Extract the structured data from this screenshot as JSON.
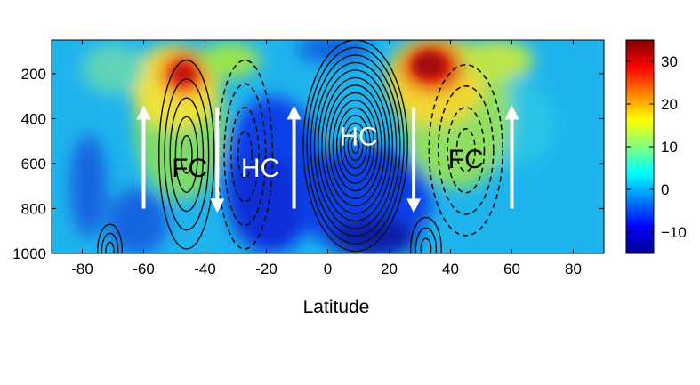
{
  "chart_data": {
    "type": "heatmap",
    "title": "",
    "xlabel": "Latitude",
    "ylabel": "",
    "xlim": [
      -90,
      90
    ],
    "ylim": [
      1000,
      50
    ],
    "x_ticks": [
      -80,
      -60,
      -40,
      -20,
      0,
      20,
      40,
      60,
      80
    ],
    "x_tick_labels": [
      "-80",
      "-60",
      "-40",
      "-20",
      "0",
      "20",
      "40",
      "60",
      "80"
    ],
    "y_ticks": [
      200,
      400,
      600,
      800,
      1000
    ],
    "y_tick_labels": [
      "200",
      "400",
      "600",
      "800",
      "1000"
    ],
    "colorbar": {
      "range": [
        -15,
        35
      ],
      "ticks": [
        -10,
        0,
        10,
        20,
        30
      ],
      "tick_labels": [
        "−10",
        "0",
        "10",
        "20",
        "30"
      ],
      "colormap": "jet"
    },
    "filled_field_maxima": [
      {
        "lat": -47,
        "p": 220,
        "value": 30
      },
      {
        "lat": 33,
        "p": 180,
        "value": 35
      },
      {
        "lat": -20,
        "p": 700,
        "value": -10
      },
      {
        "lat": 15,
        "p": 950,
        "value": -12
      }
    ],
    "cells": [
      {
        "label": "FC",
        "lat": -45,
        "p": 620,
        "color": "#000000"
      },
      {
        "label": "HC",
        "lat": -22,
        "p": 620,
        "color": "#ffffff"
      },
      {
        "label": "HC",
        "lat": 10,
        "p": 480,
        "color": "#ffffff"
      },
      {
        "label": "FC",
        "lat": 45,
        "p": 580,
        "color": "#000000"
      }
    ],
    "arrows": [
      {
        "lat": -60,
        "direction": "up",
        "from_p": 800,
        "to_p": 380
      },
      {
        "lat": -36,
        "direction": "down",
        "from_p": 350,
        "to_p": 780
      },
      {
        "lat": -11,
        "direction": "up",
        "from_p": 800,
        "to_p": 380
      },
      {
        "lat": 28,
        "direction": "down",
        "from_p": 350,
        "to_p": 780
      },
      {
        "lat": 60,
        "direction": "up",
        "from_p": 800,
        "to_p": 380
      }
    ]
  }
}
